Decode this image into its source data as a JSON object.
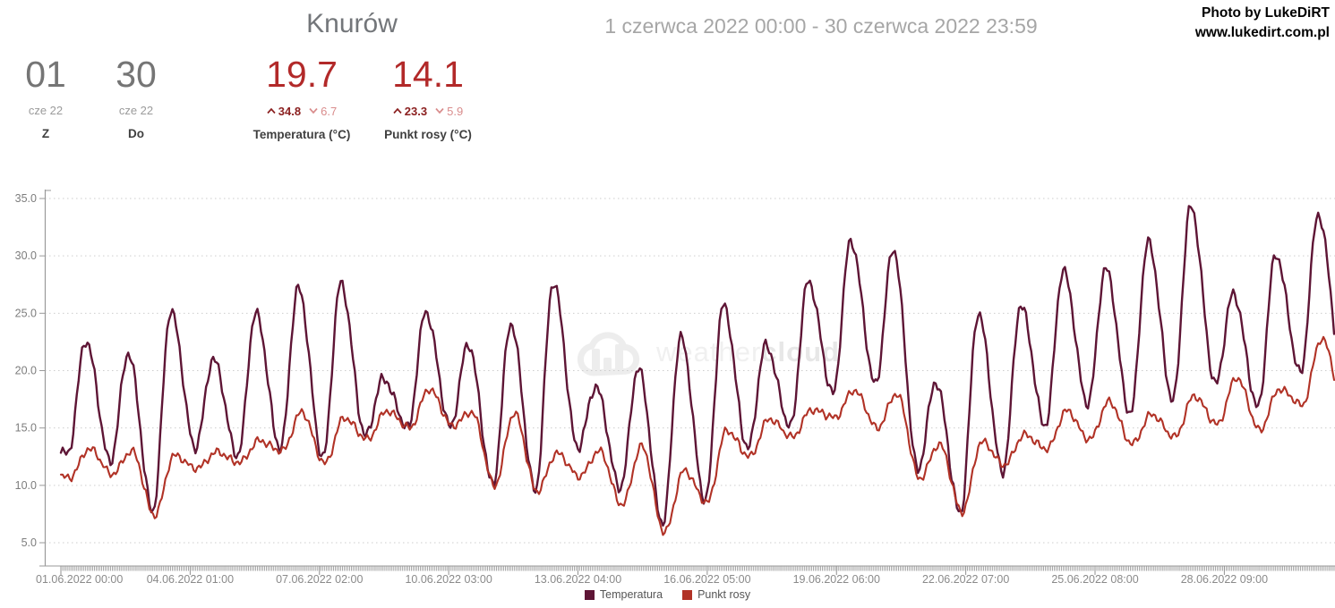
{
  "header": {
    "title": "Knurów",
    "date_range": "1 czerwca 2022 00:00 - 30 czerwca 2022 23:59",
    "credit_line1": "Photo by LukeDiRT",
    "credit_line2": "www.lukedirt.com.pl"
  },
  "stats": {
    "from": {
      "value": "01",
      "sub": "cze 22",
      "label": "Z"
    },
    "to": {
      "value": "30",
      "sub": "cze 22",
      "label": "Do"
    },
    "temperature": {
      "value": "19.7",
      "max": "34.8",
      "min": "6.7",
      "label": "Temperatura (°C)"
    },
    "dew_point": {
      "value": "14.1",
      "max": "23.3",
      "min": "5.9",
      "label": "Punkt rosy (°C)"
    }
  },
  "watermark": {
    "text_light": "weather",
    "text_bold": "cloud"
  },
  "colors": {
    "temperature_line": "#5e1535",
    "dew_point_line": "#b13226",
    "stat_red": "#b22929",
    "stat_max_red": "#8b2020",
    "stat_min_red": "#d98c8c",
    "grid": "#cdcdcd",
    "axis": "#9a9a9a",
    "tick_comb": "#919191",
    "axis_label": "#8a8a8a"
  },
  "chart_data": {
    "type": "line",
    "title": "Knurów — Temperatura / Punkt rosy, czerwiec 2022",
    "xlabel": "",
    "ylabel": "°C",
    "ylim": [
      3,
      36.5
    ],
    "grid": "dotted-horizontal",
    "legend_position": "bottom",
    "y_ticks": [
      5.0,
      10.0,
      15.0,
      20.0,
      25.0,
      30.0,
      35.0
    ],
    "x_tick_labels": [
      "01.06.2022 00:00",
      "04.06.2022 01:00",
      "07.06.2022 02:00",
      "10.06.2022 03:00",
      "13.06.2022 04:00",
      "16.06.2022 05:00",
      "19.06.2022 06:00",
      "22.06.2022 07:00",
      "25.06.2022 08:00",
      "28.06.2022 09:00"
    ],
    "x_tick_hours": [
      0,
      73,
      146,
      219,
      292,
      365,
      438,
      511,
      584,
      657
    ],
    "hours_total": 720,
    "days": 30,
    "series": [
      {
        "name": "Temperatura",
        "color": "#5e1535",
        "start_value": 13.0,
        "min_hour": 4,
        "max_hour": 14,
        "period_mean": 19.7,
        "period_max": 34.8,
        "period_min": 6.7,
        "daily_max": [
          22.6,
          21.5,
          25.2,
          21.0,
          25.0,
          27.2,
          27.6,
          19.3,
          25.1,
          22.3,
          24.1,
          27.7,
          18.6,
          20.2,
          22.9,
          25.7,
          22.2,
          27.8,
          31.3,
          30.6,
          19.0,
          25.0,
          25.7,
          28.7,
          28.9,
          31.2,
          34.3,
          26.7,
          30.1,
          33.6
        ],
        "daily_min": [
          12.8,
          12.1,
          7.8,
          13.3,
          12.6,
          13.2,
          12.4,
          14.3,
          15.0,
          15.1,
          10.1,
          9.6,
          13.3,
          9.8,
          6.7,
          8.7,
          13.2,
          15.1,
          18.0,
          18.8,
          11.4,
          7.6,
          11.2,
          15.2,
          17.1,
          16.2,
          17.4,
          18.8,
          16.8,
          19.8
        ]
      },
      {
        "name": "Punkt rosy",
        "color": "#b13226",
        "start_value": 10.8,
        "min_hour": 5,
        "max_hour": 16,
        "period_mean": 14.1,
        "period_max": 23.3,
        "period_min": 5.9,
        "daily_max": [
          13.2,
          13.0,
          12.6,
          12.9,
          13.9,
          16.4,
          15.9,
          16.5,
          18.4,
          16.4,
          16.3,
          12.8,
          13.0,
          13.4,
          11.3,
          14.8,
          15.8,
          16.6,
          18.3,
          18.0,
          13.6,
          13.8,
          14.4,
          16.5,
          17.3,
          16.2,
          17.8,
          19.4,
          18.4,
          22.8
        ],
        "daily_min": [
          10.7,
          11.0,
          7.4,
          11.5,
          12.0,
          13.0,
          11.9,
          14.0,
          15.0,
          15.2,
          10.0,
          9.5,
          10.8,
          8.3,
          5.9,
          8.5,
          12.5,
          14.2,
          15.9,
          15.0,
          10.6,
          7.7,
          11.8,
          13.2,
          14.0,
          13.6,
          14.2,
          15.3,
          14.8,
          17.0
        ]
      }
    ]
  }
}
